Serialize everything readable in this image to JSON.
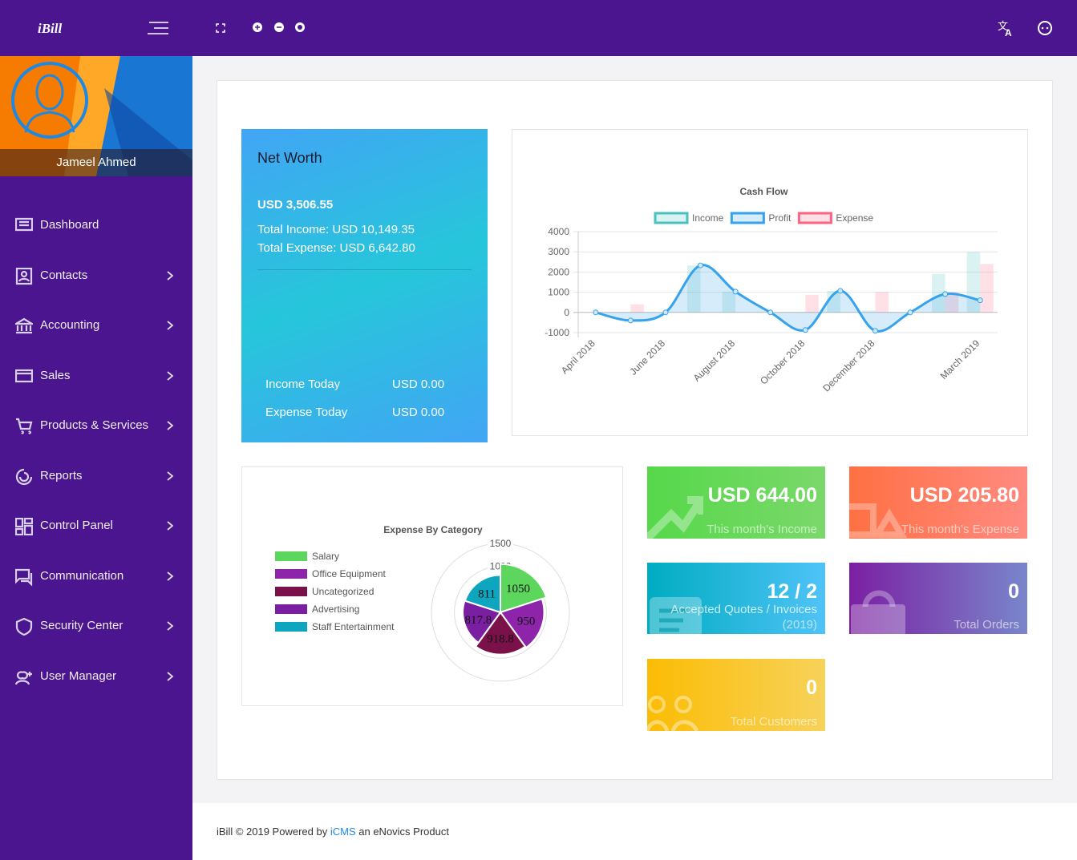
{
  "brand": "iBill",
  "user_name": "Jameel Ahmed",
  "menu": [
    "Dashboard",
    "Contacts",
    "Accounting",
    "Sales",
    "Products & Services",
    "Reports",
    "Control Panel",
    "Communication",
    "Security Center",
    "User Manager"
  ],
  "net_worth": {
    "title": "Net Worth",
    "amount": "USD 3,506.55",
    "total_income": "Total Income: USD 10,149.35",
    "total_expense": "Total Expense: USD 6,642.80",
    "income_today_label": "Income Today",
    "income_today": "USD 0.00",
    "expense_today_label": "Expense Today",
    "expense_today": "USD 0.00"
  },
  "stats": [
    {
      "value": "USD 644.00",
      "label": "This month's Income"
    },
    {
      "value": "USD 205.80",
      "label": "This month's Expense"
    },
    {
      "value": "12 / 2",
      "label": "Accepted Quotes / Invoices",
      "sublabel": "(2019)"
    },
    {
      "value": "0",
      "label": "Total Orders"
    },
    {
      "value": "0",
      "label": "Total Customers"
    }
  ],
  "footer": {
    "text": "iBill © 2019 Powered by",
    "link": "iCMS",
    "suffix": "an eNovics Product"
  },
  "chart_data": [
    {
      "type": "bar",
      "title": "Cash Flow",
      "categories": [
        "April 2018",
        null,
        "June 2018",
        null,
        "August 2018",
        null,
        "October 2018",
        null,
        "December 2018",
        null,
        null,
        "March 2019"
      ],
      "series": [
        {
          "name": "Income",
          "color": "#4bc0c0",
          "type": "bar",
          "values": [
            0,
            0,
            0,
            2330,
            1030,
            0,
            0,
            1070,
            100,
            0,
            1910,
            3000
          ]
        },
        {
          "name": "Profit",
          "color": "#36a2eb",
          "type": "area",
          "values": [
            0,
            -400,
            0,
            2330,
            1030,
            0,
            -870,
            1070,
            -910,
            0,
            910,
            600
          ]
        },
        {
          "name": "Expense",
          "color": "#ff6384",
          "type": "bar",
          "values": [
            0,
            400,
            0,
            0,
            0,
            0,
            870,
            0,
            1010,
            0,
            1000,
            2400
          ]
        }
      ],
      "ylim": [
        -1000,
        4000
      ],
      "yticks": [
        -1000,
        0,
        1000,
        2000,
        3000,
        4000
      ],
      "grid": true
    },
    {
      "type": "polar",
      "title": "Expense By Category",
      "categories": [
        "Salary",
        "Office Equipment",
        "Uncategorized",
        "Advertising",
        "Staff Entertainment"
      ],
      "values": [
        1050,
        950,
        918.8,
        817.8,
        811
      ],
      "colors": [
        "#5cd65c",
        "#8e24aa",
        "#7b1149",
        "#7b1fa2",
        "#0ea5bf"
      ],
      "rlim": [
        0,
        1500
      ],
      "rticks": [
        500,
        1000,
        1500
      ]
    }
  ]
}
